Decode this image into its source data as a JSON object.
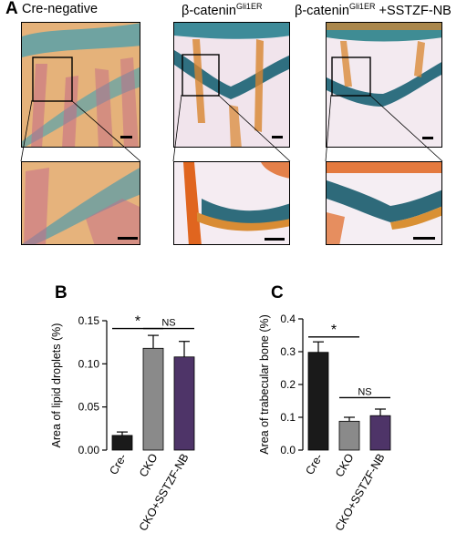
{
  "panel_a": {
    "letter": "A",
    "columns": [
      {
        "title": "Cre-negative"
      },
      {
        "title_main": "β-catenin",
        "title_sup": "Gli1ER",
        "title_suffix": ""
      },
      {
        "title_main": "β-catenin",
        "title_sup": "Gli1ER",
        "title_suffix": " +SSTZF-NB"
      }
    ]
  },
  "chart_data": [
    {
      "panel": "B",
      "type": "bar",
      "ylabel": "Area of lipid droplets (%)",
      "categories": [
        "Cre-",
        "CKO",
        "CKO+SSTZF-NB"
      ],
      "values": [
        0.017,
        0.118,
        0.108
      ],
      "errors": [
        0.004,
        0.015,
        0.018
      ],
      "colors": [
        "#1a1a1a",
        "#8a8a8a",
        "#4e3468"
      ],
      "ylim": [
        0,
        0.15
      ],
      "yticks": [
        "0.00",
        "0.05",
        "0.10",
        "0.15"
      ],
      "ytick_values": [
        0,
        0.05,
        0.1,
        0.15
      ],
      "annotations": [
        {
          "text": "*",
          "from": 0,
          "to": 1,
          "level": 0.141
        },
        {
          "text": "NS",
          "from": 1,
          "to": 2,
          "level": 0.141
        }
      ]
    },
    {
      "panel": "C",
      "type": "bar",
      "ylabel": "Area of trabecular bone (%)",
      "categories": [
        "Cre-",
        "CKO",
        "CKO+SSTZF-NB"
      ],
      "values": [
        0.298,
        0.088,
        0.105
      ],
      "errors": [
        0.032,
        0.012,
        0.02
      ],
      "colors": [
        "#1a1a1a",
        "#8a8a8a",
        "#4e3468"
      ],
      "ylim": [
        0,
        0.4
      ],
      "yticks": [
        "0.0",
        "0.1",
        "0.2",
        "0.3",
        "0.4"
      ],
      "ytick_values": [
        0,
        0.1,
        0.2,
        0.3,
        0.4
      ],
      "annotations": [
        {
          "text": "*",
          "from": 0,
          "to": 1,
          "level": 0.345
        },
        {
          "text": "NS",
          "from": 1,
          "to": 2,
          "level": 0.16
        }
      ]
    }
  ]
}
